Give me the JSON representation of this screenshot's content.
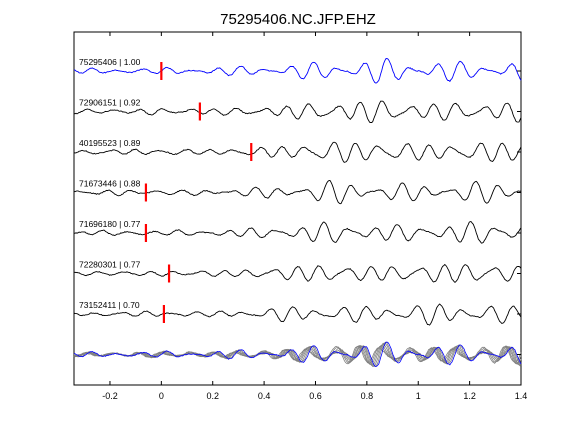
{
  "chart_data": {
    "type": "line",
    "title": "75295406.NC.JFP.EHZ",
    "xlabel": "",
    "ylabel": "",
    "xlim": [
      -0.34,
      1.4
    ],
    "x_ticks": [
      -0.2,
      0,
      0.2,
      0.4,
      0.6,
      0.8,
      1,
      1.2,
      1.4
    ],
    "x_tick_labels": [
      "-0.2",
      "0",
      "0.2",
      "0.4",
      "0.6",
      "0.8",
      "1",
      "1.2",
      "1.4"
    ],
    "grid": false,
    "colors": {
      "reference": "#0000ff",
      "trace": "#000000",
      "overlay": "#808080",
      "pick": "#ff0000"
    },
    "traces": [
      {
        "label": "75295406 | 1.00",
        "pick": 0.0,
        "reference": true
      },
      {
        "label": "72906151 | 0.92",
        "pick": 0.15
      },
      {
        "label": "40195523 | 0.89",
        "pick": 0.35
      },
      {
        "label": "71673446 | 0.88",
        "pick": -0.06
      },
      {
        "label": "71696180 | 0.77",
        "pick": -0.06
      },
      {
        "label": "72280301 | 0.77",
        "pick": 0.03
      },
      {
        "label": "73152411 | 0.70",
        "pick": 0.01
      }
    ],
    "stack": {
      "label": ""
    }
  }
}
